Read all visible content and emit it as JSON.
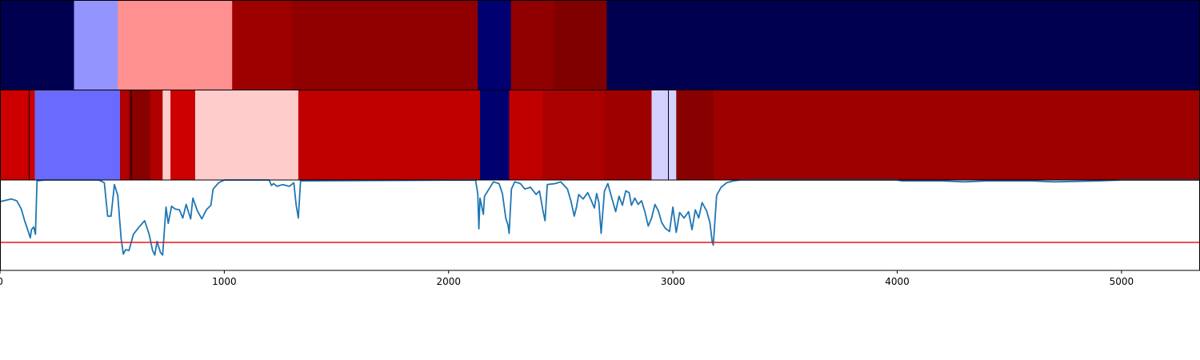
{
  "chart_data": {
    "type": "heatmap",
    "xlim": [
      0,
      5350
    ],
    "x_ticks": [
      0,
      1000,
      2000,
      3000,
      4000,
      5000
    ],
    "x_tick_labels": [
      "0",
      "1000",
      "2000",
      "3000",
      "4000",
      "5000"
    ],
    "rows": [
      {
        "segments": [
          {
            "x0": 0,
            "x1": 330,
            "color": "#000050"
          },
          {
            "x0": 330,
            "x1": 525,
            "color": "#9494ff"
          },
          {
            "x0": 525,
            "x1": 1035,
            "color": "#ff9090"
          },
          {
            "x0": 1035,
            "x1": 1300,
            "color": "#9e0000"
          },
          {
            "x0": 1300,
            "x1": 2130,
            "color": "#900000"
          },
          {
            "x0": 2130,
            "x1": 2278,
            "color": "#000070"
          },
          {
            "x0": 2278,
            "x1": 2470,
            "color": "#900000"
          },
          {
            "x0": 2470,
            "x1": 2705,
            "color": "#800000"
          },
          {
            "x0": 2705,
            "x1": 5350,
            "color": "#000050"
          }
        ],
        "separators": []
      },
      {
        "segments": [
          {
            "x0": 0,
            "x1": 155,
            "color": "#cc0000"
          },
          {
            "x0": 155,
            "x1": 535,
            "color": "#6a6aff"
          },
          {
            "x0": 535,
            "x1": 575,
            "color": "#b00000"
          },
          {
            "x0": 575,
            "x1": 670,
            "color": "#880000"
          },
          {
            "x0": 670,
            "x1": 725,
            "color": "#b00000"
          },
          {
            "x0": 725,
            "x1": 760,
            "color": "#ffcccc"
          },
          {
            "x0": 760,
            "x1": 870,
            "color": "#cc0000"
          },
          {
            "x0": 870,
            "x1": 1330,
            "color": "#ffcccc"
          },
          {
            "x0": 1330,
            "x1": 2140,
            "color": "#c00000"
          },
          {
            "x0": 2140,
            "x1": 2270,
            "color": "#000070"
          },
          {
            "x0": 2270,
            "x1": 2420,
            "color": "#c00000"
          },
          {
            "x0": 2420,
            "x1": 2695,
            "color": "#aa0000"
          },
          {
            "x0": 2695,
            "x1": 2905,
            "color": "#9e0000"
          },
          {
            "x0": 2905,
            "x1": 3015,
            "color": "#d4d0ff"
          },
          {
            "x0": 3015,
            "x1": 3180,
            "color": "#880000"
          },
          {
            "x0": 3180,
            "x1": 5350,
            "color": "#9e0000"
          }
        ],
        "separators": [
          130,
          585,
          2980
        ]
      }
    ],
    "line_panel": {
      "ylim": [
        0,
        1
      ],
      "threshold": 0.31,
      "threshold_color": "#e41a1c",
      "line_color": "#1f77b4",
      "series": [
        {
          "x": 0,
          "y": 0.76
        },
        {
          "x": 50,
          "y": 0.79
        },
        {
          "x": 75,
          "y": 0.77
        },
        {
          "x": 95,
          "y": 0.68
        },
        {
          "x": 110,
          "y": 0.55
        },
        {
          "x": 125,
          "y": 0.44
        },
        {
          "x": 135,
          "y": 0.36
        },
        {
          "x": 140,
          "y": 0.45
        },
        {
          "x": 150,
          "y": 0.48
        },
        {
          "x": 158,
          "y": 0.4
        },
        {
          "x": 165,
          "y": 0.99
        },
        {
          "x": 200,
          "y": 1.0
        },
        {
          "x": 440,
          "y": 1.0
        },
        {
          "x": 465,
          "y": 0.97
        },
        {
          "x": 480,
          "y": 0.6
        },
        {
          "x": 495,
          "y": 0.6
        },
        {
          "x": 510,
          "y": 0.95
        },
        {
          "x": 525,
          "y": 0.83
        },
        {
          "x": 540,
          "y": 0.35
        },
        {
          "x": 550,
          "y": 0.18
        },
        {
          "x": 560,
          "y": 0.23
        },
        {
          "x": 575,
          "y": 0.22
        },
        {
          "x": 595,
          "y": 0.4
        },
        {
          "x": 620,
          "y": 0.48
        },
        {
          "x": 645,
          "y": 0.55
        },
        {
          "x": 665,
          "y": 0.4
        },
        {
          "x": 680,
          "y": 0.22
        },
        {
          "x": 690,
          "y": 0.17
        },
        {
          "x": 700,
          "y": 0.32
        },
        {
          "x": 715,
          "y": 0.2
        },
        {
          "x": 725,
          "y": 0.17
        },
        {
          "x": 740,
          "y": 0.7
        },
        {
          "x": 750,
          "y": 0.52
        },
        {
          "x": 765,
          "y": 0.71
        },
        {
          "x": 780,
          "y": 0.68
        },
        {
          "x": 800,
          "y": 0.67
        },
        {
          "x": 815,
          "y": 0.58
        },
        {
          "x": 830,
          "y": 0.73
        },
        {
          "x": 850,
          "y": 0.57
        },
        {
          "x": 860,
          "y": 0.8
        },
        {
          "x": 880,
          "y": 0.66
        },
        {
          "x": 900,
          "y": 0.57
        },
        {
          "x": 920,
          "y": 0.67
        },
        {
          "x": 940,
          "y": 0.72
        },
        {
          "x": 950,
          "y": 0.9
        },
        {
          "x": 975,
          "y": 0.97
        },
        {
          "x": 1000,
          "y": 1.0
        },
        {
          "x": 1200,
          "y": 1.0
        },
        {
          "x": 1210,
          "y": 0.94
        },
        {
          "x": 1220,
          "y": 0.96
        },
        {
          "x": 1235,
          "y": 0.93
        },
        {
          "x": 1260,
          "y": 0.95
        },
        {
          "x": 1290,
          "y": 0.93
        },
        {
          "x": 1310,
          "y": 0.97
        },
        {
          "x": 1320,
          "y": 0.73
        },
        {
          "x": 1330,
          "y": 0.58
        },
        {
          "x": 1340,
          "y": 0.99
        },
        {
          "x": 2120,
          "y": 1.0
        },
        {
          "x": 2130,
          "y": 0.85
        },
        {
          "x": 2135,
          "y": 0.46
        },
        {
          "x": 2140,
          "y": 0.8
        },
        {
          "x": 2155,
          "y": 0.62
        },
        {
          "x": 2160,
          "y": 0.82
        },
        {
          "x": 2180,
          "y": 0.9
        },
        {
          "x": 2200,
          "y": 0.98
        },
        {
          "x": 2225,
          "y": 0.96
        },
        {
          "x": 2240,
          "y": 0.85
        },
        {
          "x": 2255,
          "y": 0.58
        },
        {
          "x": 2265,
          "y": 0.5
        },
        {
          "x": 2270,
          "y": 0.41
        },
        {
          "x": 2280,
          "y": 0.9
        },
        {
          "x": 2295,
          "y": 0.98
        },
        {
          "x": 2320,
          "y": 0.96
        },
        {
          "x": 2340,
          "y": 0.9
        },
        {
          "x": 2365,
          "y": 0.92
        },
        {
          "x": 2390,
          "y": 0.84
        },
        {
          "x": 2405,
          "y": 0.88
        },
        {
          "x": 2420,
          "y": 0.67
        },
        {
          "x": 2430,
          "y": 0.55
        },
        {
          "x": 2440,
          "y": 0.95
        },
        {
          "x": 2475,
          "y": 0.96
        },
        {
          "x": 2500,
          "y": 0.98
        },
        {
          "x": 2530,
          "y": 0.9
        },
        {
          "x": 2545,
          "y": 0.77
        },
        {
          "x": 2560,
          "y": 0.6
        },
        {
          "x": 2570,
          "y": 0.7
        },
        {
          "x": 2580,
          "y": 0.84
        },
        {
          "x": 2600,
          "y": 0.79
        },
        {
          "x": 2620,
          "y": 0.86
        },
        {
          "x": 2635,
          "y": 0.78
        },
        {
          "x": 2650,
          "y": 0.69
        },
        {
          "x": 2660,
          "y": 0.85
        },
        {
          "x": 2670,
          "y": 0.75
        },
        {
          "x": 2680,
          "y": 0.41
        },
        {
          "x": 2695,
          "y": 0.88
        },
        {
          "x": 2710,
          "y": 0.96
        },
        {
          "x": 2730,
          "y": 0.78
        },
        {
          "x": 2745,
          "y": 0.65
        },
        {
          "x": 2760,
          "y": 0.82
        },
        {
          "x": 2775,
          "y": 0.72
        },
        {
          "x": 2790,
          "y": 0.88
        },
        {
          "x": 2805,
          "y": 0.86
        },
        {
          "x": 2815,
          "y": 0.72
        },
        {
          "x": 2830,
          "y": 0.8
        },
        {
          "x": 2845,
          "y": 0.73
        },
        {
          "x": 2860,
          "y": 0.77
        },
        {
          "x": 2875,
          "y": 0.65
        },
        {
          "x": 2890,
          "y": 0.49
        },
        {
          "x": 2905,
          "y": 0.58
        },
        {
          "x": 2920,
          "y": 0.73
        },
        {
          "x": 2935,
          "y": 0.66
        },
        {
          "x": 2950,
          "y": 0.53
        },
        {
          "x": 2965,
          "y": 0.47
        },
        {
          "x": 2985,
          "y": 0.43
        },
        {
          "x": 3000,
          "y": 0.7
        },
        {
          "x": 3015,
          "y": 0.42
        },
        {
          "x": 3030,
          "y": 0.64
        },
        {
          "x": 3050,
          "y": 0.58
        },
        {
          "x": 3070,
          "y": 0.65
        },
        {
          "x": 3085,
          "y": 0.45
        },
        {
          "x": 3100,
          "y": 0.67
        },
        {
          "x": 3115,
          "y": 0.58
        },
        {
          "x": 3130,
          "y": 0.75
        },
        {
          "x": 3150,
          "y": 0.66
        },
        {
          "x": 3165,
          "y": 0.53
        },
        {
          "x": 3175,
          "y": 0.32
        },
        {
          "x": 3180,
          "y": 0.28
        },
        {
          "x": 3195,
          "y": 0.83
        },
        {
          "x": 3215,
          "y": 0.92
        },
        {
          "x": 3240,
          "y": 0.97
        },
        {
          "x": 3270,
          "y": 0.99
        },
        {
          "x": 3300,
          "y": 1.0
        },
        {
          "x": 4000,
          "y": 1.0
        },
        {
          "x": 4020,
          "y": 0.99
        },
        {
          "x": 4100,
          "y": 0.99
        },
        {
          "x": 4200,
          "y": 0.99
        },
        {
          "x": 4300,
          "y": 0.98
        },
        {
          "x": 4400,
          "y": 0.99
        },
        {
          "x": 4600,
          "y": 0.99
        },
        {
          "x": 4700,
          "y": 0.98
        },
        {
          "x": 4900,
          "y": 0.99
        },
        {
          "x": 5000,
          "y": 1.0
        },
        {
          "x": 5350,
          "y": 1.0
        }
      ]
    }
  }
}
